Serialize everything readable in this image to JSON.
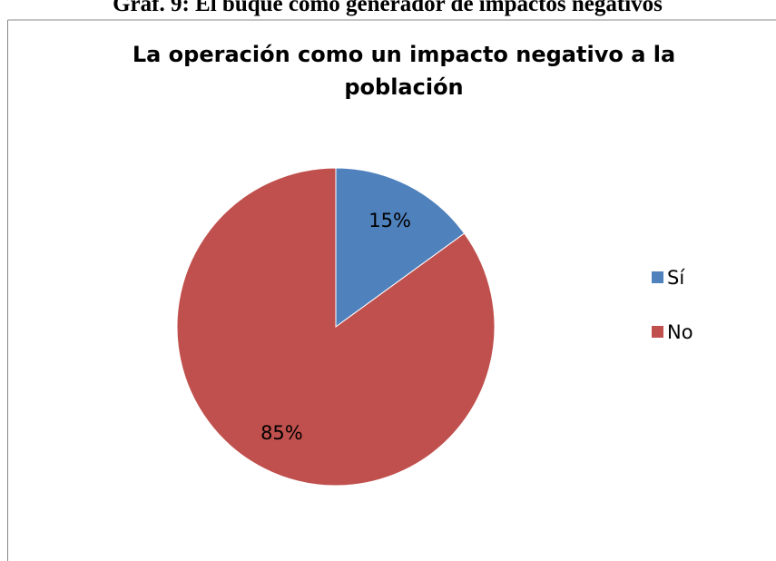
{
  "caption": "Graf. 9: El buque como generador de impactos negativos",
  "chart_data": {
    "type": "pie",
    "title": "La operación como un impacto negativo a la población",
    "categories": [
      "Sí",
      "No"
    ],
    "values": [
      15,
      85
    ],
    "value_labels": [
      "15%",
      "85%"
    ],
    "colors": [
      "#4f81bd",
      "#c0504d"
    ],
    "legend": "right"
  }
}
